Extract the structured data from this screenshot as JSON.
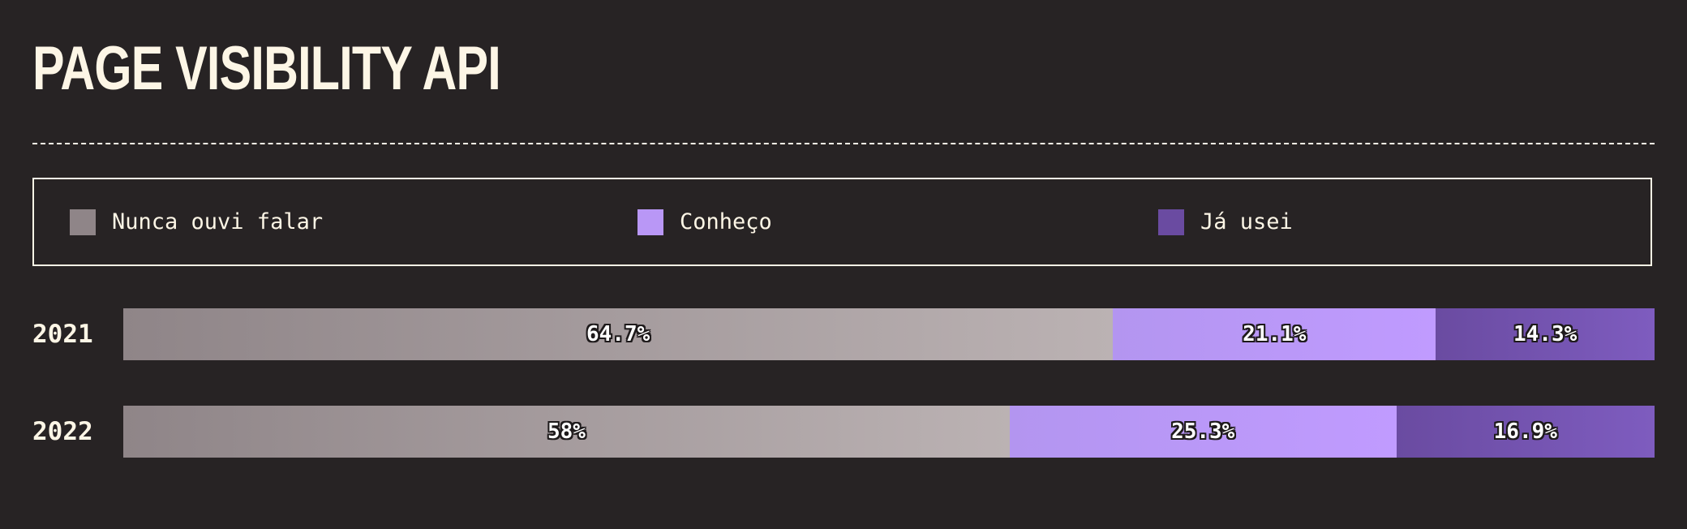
{
  "title": "PAGE VISIBILITY API",
  "legend": [
    {
      "label": "Nunca ouvi falar",
      "color": "#8f8588"
    },
    {
      "label": "Conheço",
      "color": "#b997f6"
    },
    {
      "label": "Já usei",
      "color": "#6a4ba1"
    }
  ],
  "chart_data": {
    "type": "bar",
    "orientation": "horizontal",
    "stacked": true,
    "categories": [
      "2021",
      "2022"
    ],
    "series": [
      {
        "name": "Nunca ouvi falar",
        "values": [
          64.7,
          58
        ],
        "labels": [
          "64.7%",
          "58%"
        ],
        "gradient": [
          "#8f8588",
          "#bbb2b3"
        ]
      },
      {
        "name": "Conheço",
        "values": [
          21.1,
          25.3
        ],
        "labels": [
          "21.1%",
          "25.3%"
        ],
        "gradient": [
          "#b395f0",
          "#c09bff"
        ]
      },
      {
        "name": "Já usei",
        "values": [
          14.3,
          16.9
        ],
        "labels": [
          "14.3%",
          "16.9%"
        ],
        "gradient": [
          "#6a4ba1",
          "#7e5cbf"
        ]
      }
    ],
    "xlim": [
      0,
      100
    ],
    "legend_position": "top"
  }
}
